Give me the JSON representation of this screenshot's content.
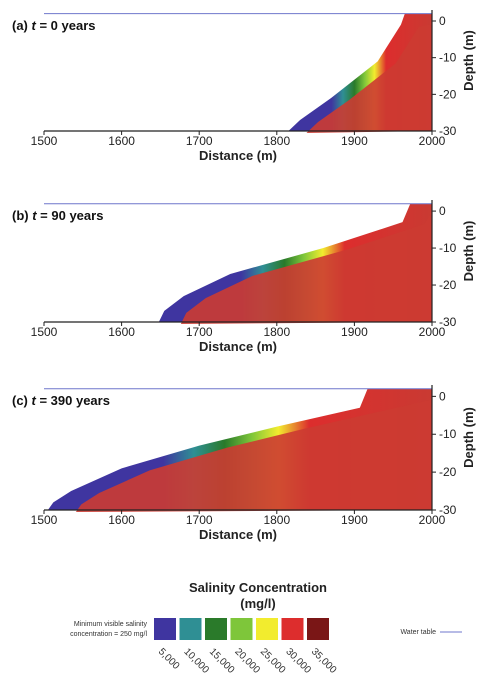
{
  "chart_data": [
    {
      "type": "heatmap",
      "title_prefix": "(a) ",
      "title_var": "t",
      "title_suffix": " = 0 years",
      "xlabel": "Distance (m)",
      "ylabel": "Depth (m)",
      "xlim": [
        1500,
        2000
      ],
      "ylim": [
        -30,
        3
      ],
      "xticks": [
        "1500",
        "1600",
        "1700",
        "1800",
        "1900",
        "2000"
      ],
      "yticks": [
        "0",
        "-10",
        "-20",
        "-30"
      ],
      "water_table_depth": 2,
      "land_surface": [
        [
          2000,
          2
        ],
        [
          1965,
          2
        ],
        [
          1960,
          -1
        ],
        [
          1930,
          -11
        ],
        [
          1870,
          -21
        ],
        [
          1830,
          -27
        ],
        [
          1815,
          -30
        ]
      ],
      "interface_offset": 18
    },
    {
      "type": "heatmap",
      "title_prefix": "(b) ",
      "title_var": "t",
      "title_suffix": " = 90 years",
      "xlabel": "Distance (m)",
      "ylabel": "Depth (m)",
      "xlim": [
        1500,
        2000
      ],
      "ylim": [
        -30,
        3
      ],
      "xticks": [
        "1500",
        "1600",
        "1700",
        "1800",
        "1900",
        "2000"
      ],
      "yticks": [
        "0",
        "-10",
        "-20",
        "-30"
      ],
      "water_table_depth": 2,
      "land_surface": [
        [
          2000,
          2
        ],
        [
          1972,
          2
        ],
        [
          1962,
          -3
        ],
        [
          1860,
          -10
        ],
        [
          1740,
          -17
        ],
        [
          1680,
          -23
        ],
        [
          1655,
          -27
        ],
        [
          1648,
          -30
        ]
      ],
      "interface_offset": 22
    },
    {
      "type": "heatmap",
      "title_prefix": "(c) ",
      "title_var": "t",
      "title_suffix": " = 390 years",
      "xlabel": "Distance (m)",
      "ylabel": "Depth (m)",
      "xlim": [
        1500,
        2000
      ],
      "ylim": [
        -30,
        3
      ],
      "xticks": [
        "1500",
        "1600",
        "1700",
        "1800",
        "1900",
        "2000"
      ],
      "yticks": [
        "0",
        "-10",
        "-20",
        "-30"
      ],
      "water_table_depth": 2,
      "land_surface": [
        [
          2000,
          2
        ],
        [
          1917,
          2
        ],
        [
          1907,
          -3
        ],
        [
          1800,
          -8
        ],
        [
          1700,
          -13
        ],
        [
          1600,
          -19
        ],
        [
          1535,
          -25
        ],
        [
          1512,
          -28
        ],
        [
          1505,
          -30
        ]
      ],
      "interface_offset": 28
    }
  ],
  "legend": {
    "title_line1": "Salinity Concentration",
    "title_line2": "(mg/l)",
    "note_line1": "Minimum visible salinity",
    "note_line2": "concentration = 250 mg/l",
    "water_table_label": "Water table",
    "water_table_color": "#6f77cc",
    "swatches": [
      {
        "label": "5,000",
        "color": "#3f35a0"
      },
      {
        "label": "10,000",
        "color": "#2f8f94"
      },
      {
        "label": "15,000",
        "color": "#2a7a2a"
      },
      {
        "label": "20,000",
        "color": "#7ec63a"
      },
      {
        "label": "25,000",
        "color": "#f2ec2e"
      },
      {
        "label": "30,000",
        "color": "#dd2d2d"
      },
      {
        "label": "35,000",
        "color": "#7a1616"
      }
    ]
  }
}
